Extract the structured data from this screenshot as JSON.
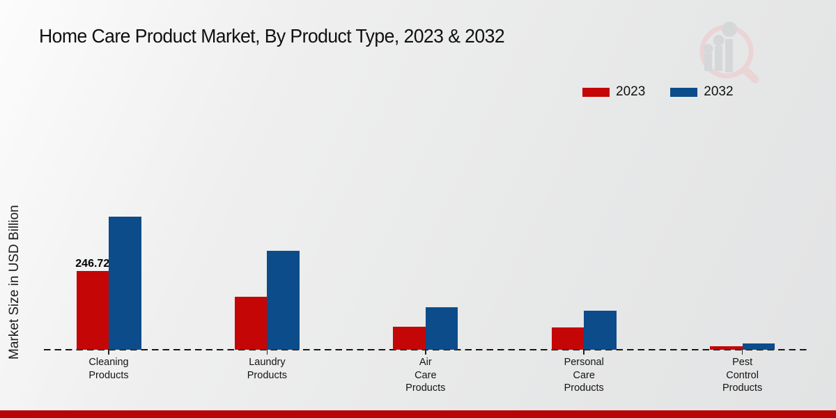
{
  "page": {
    "title": "Home Care Product Market, By Product Type, 2023 & 2032"
  },
  "watermark": {
    "icon": "magnifier-bar-chart-logo",
    "ring_color": "#eec6c9",
    "glyph_color": "#c9cbce"
  },
  "footer": {
    "accent_color": "#b80505"
  },
  "chart_data": {
    "type": "bar",
    "title": "Home Care Product Market, By Product Type, 2023 & 2032",
    "xlabel": "",
    "ylabel": "Market Size in USD Billion",
    "legend_position": "top-right",
    "grid": false,
    "axis_line_style": "dashed-zero-baseline",
    "ylim": [
      0,
      450
    ],
    "categories": [
      "Cleaning Products",
      "Laundry Products",
      "Air Care Products",
      "Personal Care Products",
      "Pest Control Products"
    ],
    "category_display_lines": [
      [
        "Cleaning",
        "Products"
      ],
      [
        "Laundry",
        "Products"
      ],
      [
        "Air",
        "Care",
        "Products"
      ],
      [
        "Personal",
        "Care",
        "Products"
      ],
      [
        "Pest",
        "Control",
        "Products"
      ]
    ],
    "series": [
      {
        "name": "2023",
        "color": "#c40606",
        "values": [
          246.72,
          167.2,
          71.8,
          70.0,
          10.3
        ],
        "data_labels": [
          "246.72",
          null,
          null,
          null,
          null
        ]
      },
      {
        "name": "2032",
        "color": "#0c4c8a",
        "values": [
          418.5,
          311.2,
          134.3,
          122.9,
          19.1
        ],
        "data_labels": [
          null,
          null,
          null,
          null,
          null
        ]
      }
    ]
  }
}
